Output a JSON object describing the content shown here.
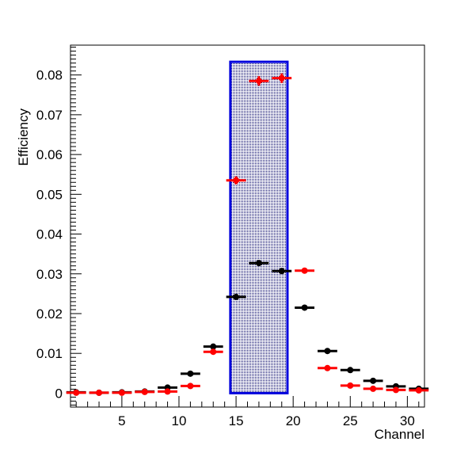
{
  "chart_data": {
    "type": "scatter",
    "title": "",
    "xlabel": "Channel",
    "ylabel": "Efficiency",
    "xlim": [
      0.5,
      31.5
    ],
    "ylim": [
      -0.0035,
      0.0875
    ],
    "x_ticks": [
      5,
      10,
      15,
      20,
      25,
      30
    ],
    "x_tick_labels": [
      "5",
      "10",
      "15",
      "20",
      "25",
      "30"
    ],
    "y_ticks": [
      0,
      0.01,
      0.02,
      0.03,
      0.04,
      0.05,
      0.06,
      0.07,
      0.08
    ],
    "y_tick_labels": [
      "0",
      "0.01",
      "0.02",
      "0.03",
      "0.04",
      "0.05",
      "0.06",
      "0.07",
      "0.08"
    ],
    "grid": false,
    "x_bin_halfwidth": 1,
    "series": [
      {
        "color": "#000000",
        "points": [
          {
            "x": 1,
            "y": 0.0002
          },
          {
            "x": 3,
            "y": 0.0001
          },
          {
            "x": 5,
            "y": 0.0002
          },
          {
            "x": 7,
            "y": 0.0004
          },
          {
            "x": 9,
            "y": 0.0014
          },
          {
            "x": 11,
            "y": 0.0049
          },
          {
            "x": 13,
            "y": 0.0117
          },
          {
            "x": 15,
            "y": 0.0242
          },
          {
            "x": 17,
            "y": 0.0327
          },
          {
            "x": 19,
            "y": 0.0307
          },
          {
            "x": 21,
            "y": 0.0215
          },
          {
            "x": 23,
            "y": 0.0106
          },
          {
            "x": 25,
            "y": 0.0058
          },
          {
            "x": 27,
            "y": 0.0031
          },
          {
            "x": 29,
            "y": 0.0017
          },
          {
            "x": 31,
            "y": 0.0011
          }
        ]
      },
      {
        "color": "#ff0000",
        "points": [
          {
            "x": 1,
            "y": 0.0001
          },
          {
            "x": 3,
            "y": 0.0001
          },
          {
            "x": 5,
            "y": 0.0001
          },
          {
            "x": 7,
            "y": 0.0003
          },
          {
            "x": 9,
            "y": 0.0004
          },
          {
            "x": 11,
            "y": 0.0018
          },
          {
            "x": 13,
            "y": 0.0104
          },
          {
            "x": 15,
            "y": 0.0535,
            "yerr": 0.001
          },
          {
            "x": 17,
            "y": 0.0785,
            "yerr": 0.0012
          },
          {
            "x": 19,
            "y": 0.0792,
            "yerr": 0.0012
          },
          {
            "x": 21,
            "y": 0.0308
          },
          {
            "x": 23,
            "y": 0.0063
          },
          {
            "x": 25,
            "y": 0.0019
          },
          {
            "x": 27,
            "y": 0.0011
          },
          {
            "x": 29,
            "y": 0.0008
          },
          {
            "x": 31,
            "y": 0.0007
          }
        ]
      }
    ],
    "highlight_region": {
      "x": [
        14.5,
        19.5
      ],
      "y": [
        0,
        0.0833
      ],
      "border_color": "#0000dd",
      "fill_color": "#000066",
      "fill_style": "dotted"
    }
  }
}
